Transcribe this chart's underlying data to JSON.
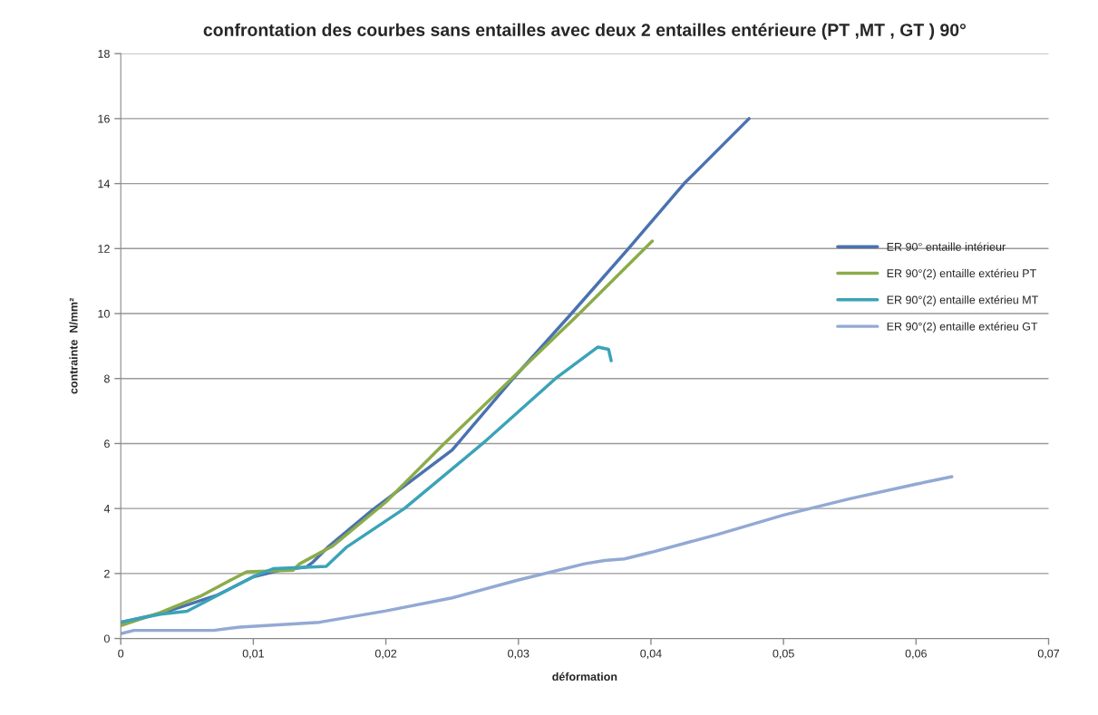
{
  "chart_data": {
    "type": "line",
    "title": "confrontation des courbes sans entailles avec deux 2 entailles entérieure (PT ,MT , GT ) 90°",
    "xlabel": "déformation",
    "ylabel": "contrainte  N/mm²",
    "xlim": [
      0,
      0.07
    ],
    "ylim": [
      0,
      18
    ],
    "xticks": [
      0,
      {
        "value": 0.01,
        "label": "0,01"
      },
      {
        "value": 0.02,
        "label": "0,02"
      },
      {
        "value": 0.03,
        "label": "0,03"
      },
      {
        "value": 0.04,
        "label": "0,04"
      },
      {
        "value": 0.05,
        "label": "0,05"
      },
      {
        "value": 0.06,
        "label": "0,06"
      },
      {
        "value": 0.07,
        "label": "0,07"
      }
    ],
    "yticks": [
      0,
      2,
      4,
      6,
      8,
      10,
      12,
      14,
      16,
      18
    ],
    "grid": "y",
    "legend": "right",
    "marker": "none",
    "line_style": "solid",
    "series": [
      {
        "name": "ER 90° entaille intérieur",
        "color": "#4a72b0",
        "x": [
          0,
          0.0031,
          0.0073,
          0.01,
          0.012,
          0.014,
          0.0145,
          0.0157,
          0.019,
          0.025,
          0.0296,
          0.034,
          0.0383,
          0.0425,
          0.0474
        ],
        "values": [
          0.5,
          0.78,
          1.34,
          1.9,
          2.1,
          2.2,
          2.35,
          2.84,
          3.96,
          5.8,
          8,
          10,
          12,
          14,
          16
        ]
      },
      {
        "name": "ER 90°(2) entaille extérieu PT",
        "color": "#8bac4a",
        "x": [
          0,
          0.003,
          0.006,
          0.009,
          0.0095,
          0.013,
          0.0135,
          0.016,
          0.02,
          0.0244,
          0.0295,
          0.0346,
          0.0401
        ],
        "values": [
          0.4,
          0.8,
          1.3,
          1.95,
          2.05,
          2.1,
          2.3,
          2.85,
          4.2,
          6,
          8,
          10,
          12.23
        ]
      },
      {
        "name": "ER 90°(2) entaille extérieu MT",
        "color": "#3ba3b8",
        "x": [
          0,
          0.003,
          0.005,
          0.01,
          0.0115,
          0.0155,
          0.017,
          0.0214,
          0.0273,
          0.0328,
          0.036,
          0.0368,
          0.037
        ],
        "values": [
          0.5,
          0.75,
          0.84,
          1.9,
          2.15,
          2.22,
          2.8,
          4,
          6,
          8,
          8.97,
          8.9,
          8.55
        ]
      },
      {
        "name": "ER 90°(2) entaille extérieu GT",
        "color": "#93a9d4",
        "x": [
          0,
          0.001,
          0.007,
          0.009,
          0.011,
          0.015,
          0.02,
          0.025,
          0.03,
          0.035,
          0.0365,
          0.038,
          0.04,
          0.045,
          0.05,
          0.055,
          0.06,
          0.0627
        ],
        "values": [
          0.15,
          0.25,
          0.25,
          0.35,
          0.4,
          0.5,
          0.85,
          1.25,
          1.8,
          2.3,
          2.4,
          2.45,
          2.65,
          3.2,
          3.8,
          4.3,
          4.75,
          4.98
        ]
      }
    ]
  }
}
